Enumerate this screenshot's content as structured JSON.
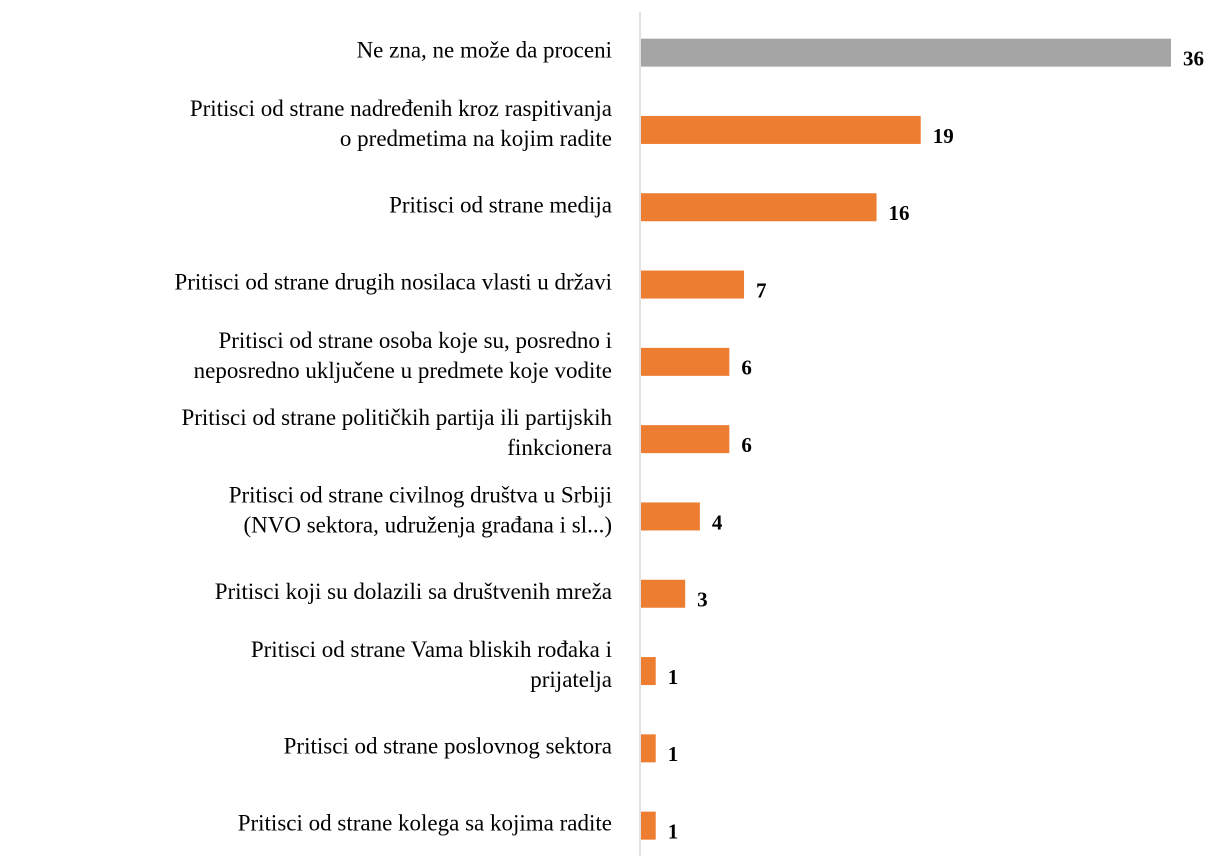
{
  "chart_data": {
    "type": "barh",
    "categories": [
      "Ne zna, ne može da proceni",
      "Pritisci od strane nadređenih kroz raspitivanja\no predmetima na kojim radite",
      "Pritisci od strane medija",
      "Pritisci od strane drugih nosilaca vlasti u državi",
      "Pritisci od strane osoba koje su, posredno i\nneposredno uključene u predmete koje vodite",
      "Pritisci od strane političkih partija ili partijskih\nfinkcionera",
      "Pritisci od strane civilnog društva u Srbiji\n(NVO sektora, udruženja građana i sl...)",
      "Pritisci koji su dolazili sa društvenih mreža",
      "Pritisci od strane Vama bliskih rođaka i\nprijatelja",
      "Pritisci od strane poslovnog sektora",
      "Pritisci od strane kolega sa kojima radite"
    ],
    "values": [
      36,
      19,
      16,
      7,
      6,
      6,
      4,
      3,
      1,
      1,
      1
    ],
    "colors": [
      "#a5a5a5",
      "#ed7d31",
      "#ed7d31",
      "#ed7d31",
      "#ed7d31",
      "#ed7d31",
      "#ed7d31",
      "#ed7d31",
      "#ed7d31",
      "#ed7d31",
      "#ed7d31"
    ],
    "xlim": [
      0,
      36
    ]
  }
}
